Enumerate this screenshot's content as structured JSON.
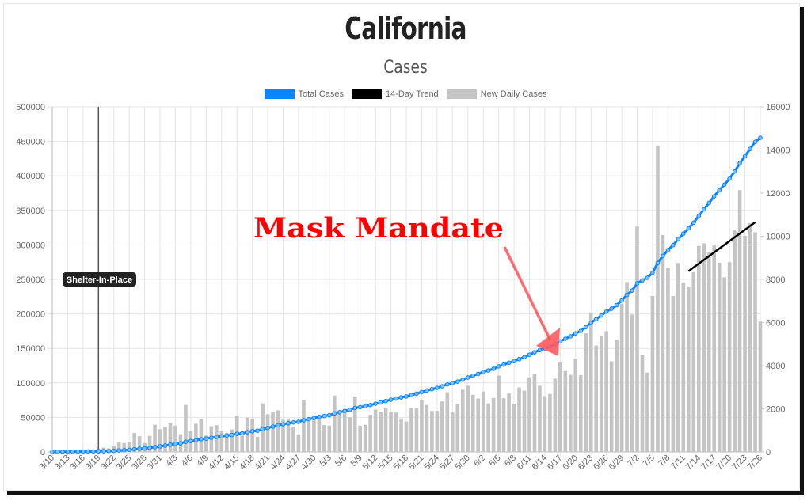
{
  "title": "California",
  "subtitle": "Cases",
  "colors": {
    "total": "#0a84ff",
    "trend": "#000000",
    "daily": "#c4c4c4",
    "annotation": "#ff0000",
    "arrow": "#ff5a5f"
  },
  "chart_data": {
    "type": "bar+line",
    "title": "California",
    "subtitle": "Cases",
    "legend_position": "top",
    "grid": true,
    "y_left": {
      "range": [
        0,
        500000
      ],
      "ticks": [
        "0",
        "50000",
        "100000",
        "150000",
        "200000",
        "250000",
        "300000",
        "350000",
        "400000",
        "450000",
        "500000"
      ]
    },
    "y_right": {
      "range": [
        0,
        16000
      ],
      "ticks": [
        "0",
        "2000",
        "4000",
        "6000",
        "8000",
        "10000",
        "12000",
        "14000",
        "16000"
      ]
    },
    "x_start": "3/10",
    "x_tick_labels": [
      "3/10",
      "3/13",
      "3/16",
      "3/19",
      "3/22",
      "3/25",
      "3/28",
      "3/31",
      "4/3",
      "4/6",
      "4/9",
      "4/12",
      "4/15",
      "4/18",
      "4/21",
      "4/24",
      "4/27",
      "4/30",
      "5/3",
      "5/6",
      "5/9",
      "5/12",
      "5/15",
      "5/18",
      "5/21",
      "5/24",
      "5/27",
      "5/30",
      "6/2",
      "6/5",
      "6/8",
      "6/11",
      "6/14",
      "6/17",
      "6/20",
      "6/23",
      "6/26",
      "6/29",
      "7/2",
      "7/5",
      "7/8",
      "7/11",
      "7/14",
      "7/17",
      "7/20",
      "7/23",
      "7/26"
    ],
    "series": [
      {
        "name": "Total Cases",
        "type": "line",
        "axis": "left",
        "values": [
          180,
          200,
          250,
          300,
          350,
          400,
          500,
          600,
          700,
          900,
          1100,
          1300,
          1600,
          2100,
          2500,
          3000,
          3900,
          4600,
          5000,
          5800,
          7000,
          8100,
          9200,
          10500,
          11700,
          12500,
          14700,
          15700,
          17000,
          18500,
          19300,
          20500,
          21700,
          22700,
          23600,
          24600,
          26300,
          27000,
          28600,
          30100,
          30800,
          33100,
          34800,
          36700,
          38600,
          40100,
          41600,
          42800,
          43600,
          46000,
          47500,
          49100,
          50800,
          52000,
          53200,
          55800,
          57600,
          59500,
          61100,
          63700,
          64900,
          66200,
          67900,
          69900,
          71700,
          73700,
          75600,
          77400,
          79000,
          80400,
          82400,
          84400,
          86800,
          89000,
          90900,
          92800,
          95100,
          97900,
          99700,
          101900,
          104800,
          107900,
          110500,
          113000,
          115800,
          118000,
          120500,
          124000,
          126500,
          129200,
          131500,
          134500,
          137300,
          140800,
          144400,
          147500,
          150100,
          152700,
          156100,
          160200,
          164000,
          167500,
          171800,
          175400,
          180900,
          187300,
          192300,
          197700,
          203300,
          207500,
          212700,
          219600,
          227500,
          233800,
          244300,
          248700,
          252400,
          259600,
          273800,
          283900,
          292400,
          299600,
          308400,
          316200,
          323900,
          332200,
          341800,
          351500,
          360700,
          370300,
          379100,
          387200,
          396000,
          406300,
          418400,
          428400,
          439000,
          449200,
          455300
        ]
      },
      {
        "name": "14-Day Trend",
        "type": "line",
        "axis": "right",
        "x": [
          "7/12",
          "7/25"
        ],
        "values": [
          8380,
          10650
        ]
      },
      {
        "name": "New Daily Cases",
        "type": "bar",
        "axis": "right",
        "values": [
          0,
          20,
          30,
          40,
          45,
          50,
          60,
          70,
          100,
          150,
          200,
          160,
          260,
          450,
          415,
          450,
          880,
          730,
          415,
          745,
          1260,
          1050,
          1160,
          1345,
          1220,
          820,
          2180,
          980,
          1310,
          1530,
          760,
          1190,
          1240,
          980,
          880,
          1040,
          1675,
          760,
          1590,
          1530,
          700,
          2250,
          1750,
          1870,
          1930,
          1490,
          1520,
          1160,
          800,
          2385,
          1500,
          1600,
          1700,
          1250,
          1220,
          2620,
          1760,
          1900,
          1610,
          2570,
          1220,
          1260,
          1720,
          1960,
          1860,
          2020,
          1860,
          1830,
          1555,
          1410,
          2050,
          2025,
          2420,
          2180,
          1900,
          1900,
          2340,
          2770,
          1830,
          2200,
          2890,
          3070,
          2650,
          2480,
          2800,
          2250,
          2500,
          3540,
          2490,
          2710,
          2240,
          2990,
          2840,
          3460,
          3615,
          3070,
          2590,
          2690,
          3400,
          4150,
          3750,
          3570,
          4320,
          3560,
          5500,
          6470,
          4930,
          5400,
          5600,
          4200,
          5210,
          6870,
          7880,
          6370,
          10450,
          4480,
          3680,
          7230,
          14210,
          10060,
          8530,
          7230,
          8760,
          7850,
          7670,
          8340,
          9550,
          9670,
          9250,
          9570,
          8770,
          8100,
          8800,
          10270,
          12140,
          10020,
          10600,
          10180,
          6050
        ]
      }
    ],
    "annotations": [
      {
        "type": "vertical-line",
        "x": "3/19",
        "label": "Shelter-In-Place"
      },
      {
        "type": "text-arrow",
        "label": "Mask Mandate",
        "points_to": "6/17"
      }
    ]
  }
}
